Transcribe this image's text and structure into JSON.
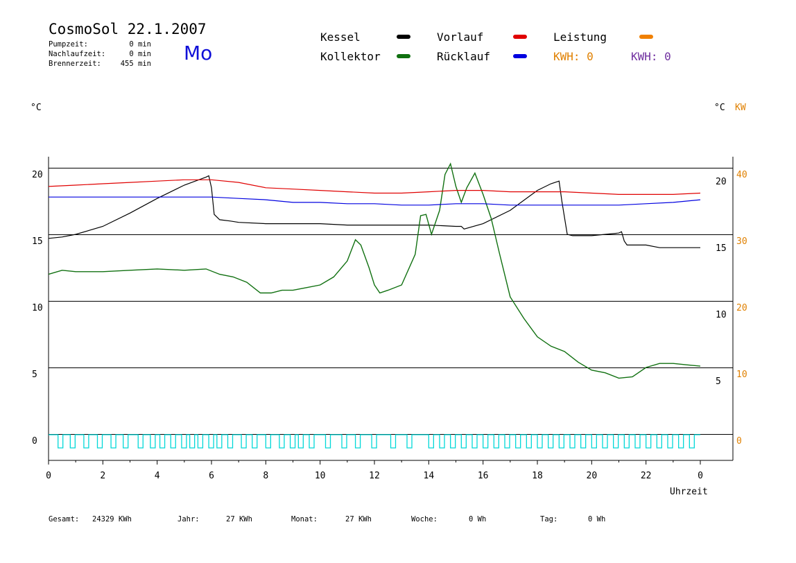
{
  "header": {
    "title": "CosmoSol 22.1.2007",
    "day": "Mo",
    "stats": [
      {
        "label": "Pumpzeit:",
        "value": "0 min"
      },
      {
        "label": "Nachlaufzeit:",
        "value": "0 min"
      },
      {
        "label": "Brennerzeit:",
        "value": "455 min"
      }
    ]
  },
  "legend": {
    "kessel": {
      "label": "Kessel",
      "color": "#000000"
    },
    "kollektor": {
      "label": "Kollektor",
      "color": "#107010"
    },
    "vorlauf": {
      "label": "Vorlauf",
      "color": "#e00000"
    },
    "ruecklauf": {
      "label": "Rücklauf",
      "color": "#0000e0"
    },
    "leistung": {
      "label": "Leistung",
      "color": "#f08000"
    },
    "kwh1": {
      "label": "KWH:",
      "value": "0",
      "color": "#e08000"
    },
    "kwh2": {
      "label": "KWH:",
      "value": "0",
      "color": "#7030a0"
    }
  },
  "footer": {
    "gesamt": {
      "label": "Gesamt:",
      "value": "24329 KWh"
    },
    "jahr": {
      "label": "Jahr:",
      "value": "27 KWh"
    },
    "monat": {
      "label": "Monat:",
      "value": "27 KWh"
    },
    "woche": {
      "label": "Woche:",
      "value": "0 Wh"
    },
    "tag": {
      "label": "Tag:",
      "value": "0 Wh"
    }
  },
  "chart_data": {
    "type": "line",
    "xlabel": "Uhrzeit",
    "ylabel_left": "°C",
    "ylabel_right": "°C",
    "ylabel_right2": "KW",
    "xlim": [
      0,
      24
    ],
    "ylim": [
      -1.5,
      21
    ],
    "x_ticks": [
      "0",
      "2",
      "4",
      "6",
      "8",
      "10",
      "12",
      "14",
      "16",
      "18",
      "20",
      "22",
      "0"
    ],
    "y_left_ticks": [
      "20",
      "15",
      "10",
      "5",
      "0"
    ],
    "y_right_ticks": [
      "20",
      "15",
      "10",
      "5"
    ],
    "y_kw_ticks": [
      "40",
      "30",
      "20",
      "10",
      "0"
    ],
    "series": [
      {
        "name": "Kessel",
        "color": "#000000",
        "x": [
          0,
          0.5,
          1,
          2,
          3,
          4,
          5,
          5.8,
          5.9,
          6.0,
          6.1,
          6.3,
          6.7,
          7,
          8,
          9,
          10,
          11,
          12,
          13,
          14,
          15,
          15.2,
          15.3,
          16,
          17,
          18,
          18.5,
          18.8,
          18.9,
          19.1,
          19.3,
          20,
          21,
          21.1,
          21.2,
          21.3,
          22,
          22.5,
          23,
          24
        ],
        "y": [
          14.7,
          14.8,
          15.0,
          15.6,
          16.6,
          17.7,
          18.7,
          19.3,
          19.4,
          18.5,
          16.5,
          16.1,
          16.0,
          15.9,
          15.8,
          15.8,
          15.8,
          15.7,
          15.7,
          15.7,
          15.7,
          15.6,
          15.6,
          15.4,
          15.8,
          16.8,
          18.3,
          18.8,
          19.0,
          17.5,
          15.0,
          14.9,
          14.9,
          15.1,
          15.2,
          14.5,
          14.2,
          14.2,
          14.0,
          14.0,
          14.0
        ]
      },
      {
        "name": "Kollektor",
        "color": "#107010",
        "x": [
          0,
          0.5,
          1,
          2,
          3,
          4,
          5,
          5.8,
          6.3,
          6.8,
          7.3,
          7.8,
          8.2,
          8.6,
          9,
          9.5,
          10,
          10.5,
          11,
          11.3,
          11.5,
          11.8,
          12,
          12.2,
          12.5,
          13,
          13.5,
          13.7,
          13.9,
          14.1,
          14.4,
          14.6,
          14.8,
          15,
          15.2,
          15.4,
          15.7,
          16,
          16.3,
          16.6,
          17,
          17.5,
          18,
          18.5,
          19,
          19.5,
          20,
          20.5,
          21,
          21.5,
          22,
          22.5,
          23,
          23.5,
          24
        ],
        "y": [
          12.0,
          12.3,
          12.2,
          12.2,
          12.3,
          12.4,
          12.3,
          12.4,
          12.0,
          11.8,
          11.4,
          10.6,
          10.6,
          10.8,
          10.8,
          11.0,
          11.2,
          11.8,
          13.0,
          14.6,
          14.2,
          12.5,
          11.2,
          10.6,
          10.8,
          11.2,
          13.5,
          16.4,
          16.5,
          15.0,
          16.8,
          19.5,
          20.3,
          18.6,
          17.4,
          18.5,
          19.6,
          18.0,
          16.2,
          13.6,
          10.3,
          8.7,
          7.3,
          6.6,
          6.2,
          5.4,
          4.8,
          4.6,
          4.2,
          4.3,
          5.0,
          5.3,
          5.3,
          5.2,
          5.1
        ]
      },
      {
        "name": "Vorlauf",
        "color": "#e00000",
        "x": [
          0,
          1,
          2,
          3,
          4,
          5,
          5.5,
          6,
          7,
          8,
          9,
          10,
          11,
          12,
          13,
          14,
          15,
          16,
          17,
          18,
          19,
          20,
          21,
          22,
          23,
          24
        ],
        "y": [
          18.6,
          18.7,
          18.8,
          18.9,
          19.0,
          19.1,
          19.1,
          19.1,
          18.9,
          18.5,
          18.4,
          18.3,
          18.2,
          18.1,
          18.1,
          18.2,
          18.3,
          18.3,
          18.2,
          18.2,
          18.2,
          18.1,
          18.0,
          18.0,
          18.0,
          18.1
        ]
      },
      {
        "name": "Rücklauf",
        "color": "#0000e0",
        "x": [
          0,
          1,
          2,
          3,
          4,
          5,
          6,
          7,
          8,
          9,
          10,
          11,
          12,
          13,
          14,
          15,
          16,
          17,
          18,
          19,
          20,
          21,
          22,
          23,
          24
        ],
        "y": [
          17.8,
          17.8,
          17.8,
          17.8,
          17.8,
          17.8,
          17.8,
          17.7,
          17.6,
          17.4,
          17.4,
          17.3,
          17.3,
          17.2,
          17.2,
          17.3,
          17.3,
          17.2,
          17.2,
          17.2,
          17.2,
          17.2,
          17.3,
          17.4,
          17.6
        ]
      }
    ],
    "pump_pulses_x": [
      0.35,
      0.8,
      1.3,
      1.8,
      2.3,
      2.75,
      3.3,
      3.75,
      4.1,
      4.5,
      4.9,
      5.2,
      5.5,
      5.9,
      6.2,
      6.6,
      7.1,
      7.5,
      8.0,
      8.5,
      8.9,
      9.2,
      9.6,
      10.2,
      10.8,
      11.3,
      11.9,
      12.6,
      13.2,
      14.0,
      14.4,
      14.8,
      15.2,
      15.6,
      16.0,
      16.4,
      16.8,
      17.2,
      17.6,
      18.0,
      18.4,
      18.8,
      19.2,
      19.6,
      20.0,
      20.4,
      20.8,
      21.2,
      21.6,
      22.0,
      22.4,
      22.8,
      23.2,
      23.6
    ],
    "grid": true,
    "legend_position": "top"
  }
}
